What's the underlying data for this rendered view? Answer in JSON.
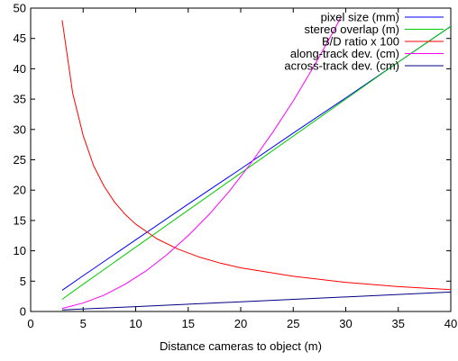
{
  "chart_data": {
    "type": "line",
    "xlabel": "Distance cameras to object (m)",
    "ylabel": "",
    "xlim": [
      0,
      40
    ],
    "ylim": [
      0,
      50
    ],
    "x_ticks": [
      0,
      5,
      10,
      15,
      20,
      25,
      30,
      35,
      40
    ],
    "y_ticks": [
      0,
      5,
      10,
      15,
      20,
      25,
      30,
      35,
      40,
      45,
      50
    ],
    "grid": false,
    "legend_position": "top-right",
    "series": [
      {
        "name": "pixel size (mm)",
        "color": "#0000ff",
        "x": [
          3,
          5,
          10,
          15,
          20,
          25,
          30,
          35,
          40
        ],
        "y": [
          3.5,
          5.9,
          11.8,
          17.7,
          23.5,
          29.4,
          35.2,
          41.1,
          47.0
        ]
      },
      {
        "name": "stereo overlap (m)",
        "color": "#00cc00",
        "x": [
          3,
          5,
          10,
          15,
          20,
          25,
          30,
          35,
          40
        ],
        "y": [
          2.0,
          4.5,
          10.6,
          16.7,
          22.8,
          28.9,
          35.0,
          41.1,
          47.0
        ]
      },
      {
        "name": "B/D ratio x 100",
        "color": "#ff0000",
        "x": [
          3,
          4,
          5,
          6,
          7,
          8,
          9,
          10,
          12,
          14,
          16,
          18,
          20,
          25,
          30,
          35,
          40
        ],
        "y": [
          48.0,
          36.0,
          29.0,
          24.0,
          20.6,
          18.0,
          16.0,
          14.4,
          12.0,
          10.3,
          9.0,
          8.0,
          7.2,
          5.8,
          4.8,
          4.1,
          3.6
        ]
      },
      {
        "name": "along-track dev. (cm)",
        "color": "#ff00ff",
        "x": [
          3,
          5,
          7,
          9,
          11,
          13,
          15,
          17,
          19,
          21,
          23,
          25,
          27,
          29,
          29.5
        ],
        "y": [
          0.5,
          1.4,
          2.7,
          4.5,
          6.7,
          9.4,
          12.5,
          16.0,
          20.0,
          24.5,
          29.4,
          34.7,
          40.5,
          46.7,
          48.4
        ]
      },
      {
        "name": "across-track dev. (cm)",
        "color": "#000080",
        "x": [
          3,
          10,
          20,
          30,
          40
        ],
        "y": [
          0.25,
          0.8,
          1.6,
          2.4,
          3.2
        ]
      }
    ]
  }
}
